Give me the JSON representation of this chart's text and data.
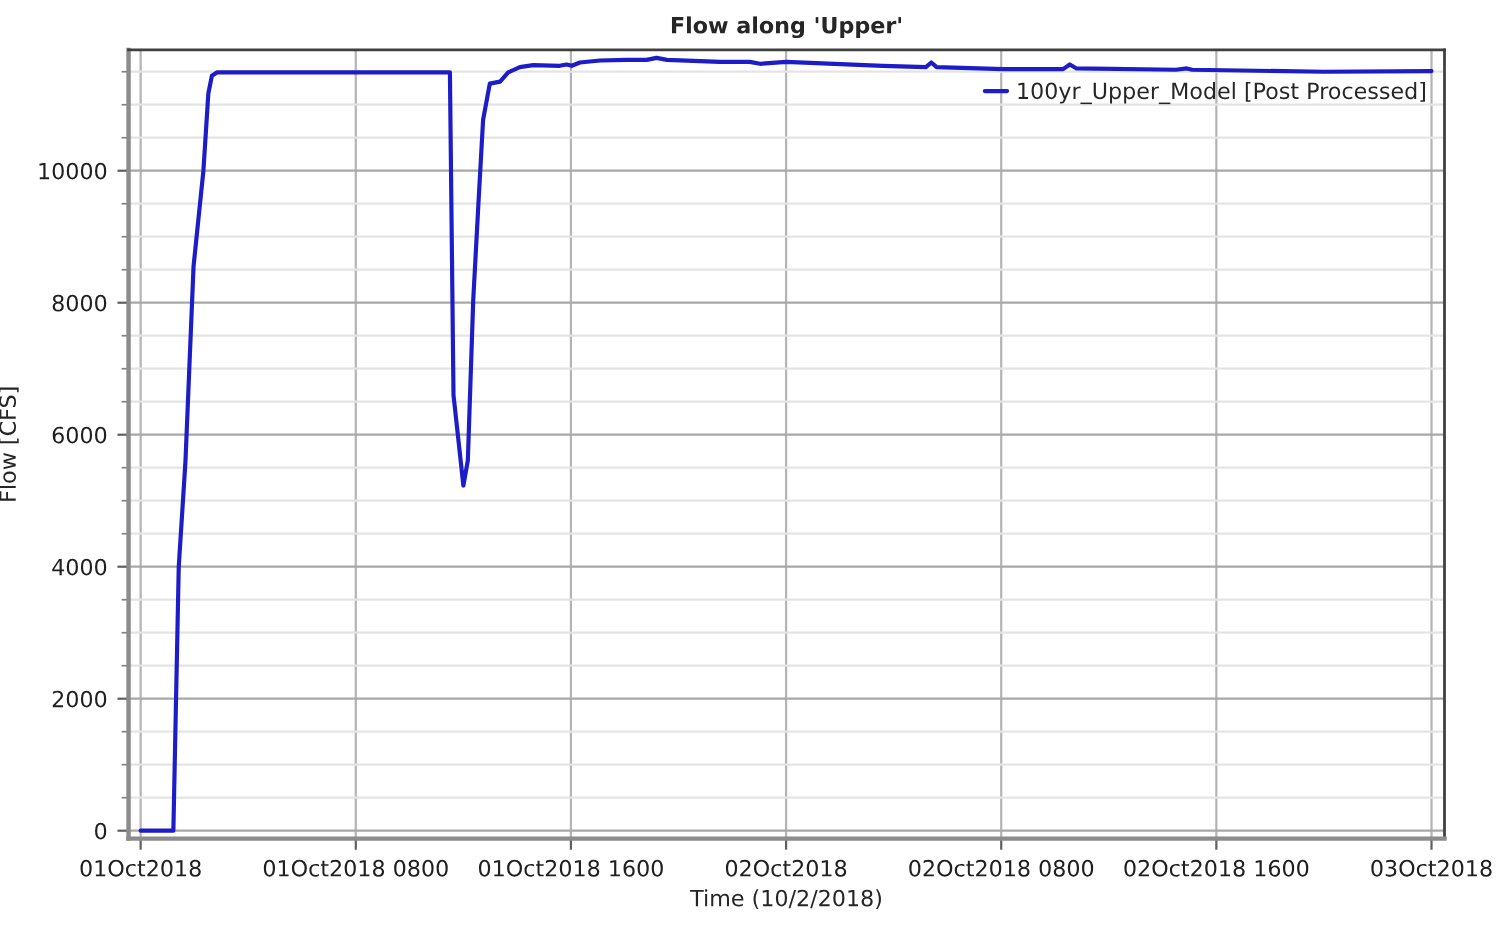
{
  "chart_data": {
    "type": "line",
    "title": "Flow along 'Upper'",
    "xlabel": "Time (10/2/2018)",
    "ylabel": "Flow [CFS]",
    "series": [
      {
        "name": "100yr_Upper_Model [Post Processed]",
        "color": "#1c1cc8",
        "x": [
          "2018-10-01T00:00",
          "2018-10-01T01:13",
          "2018-10-01T01:25",
          "2018-10-01T01:40",
          "2018-10-01T01:58",
          "2018-10-01T02:20",
          "2018-10-01T02:31",
          "2018-10-01T02:39",
          "2018-10-01T02:50",
          "2018-10-01T11:30",
          "2018-10-01T11:38",
          "2018-10-01T12:00",
          "2018-10-01T12:10",
          "2018-10-01T12:22",
          "2018-10-01T12:34",
          "2018-10-01T12:44",
          "2018-10-01T12:59",
          "2018-10-01T13:22",
          "2018-10-01T13:40",
          "2018-10-01T14:06",
          "2018-10-01T14:36",
          "2018-10-01T15:35",
          "2018-10-01T15:50",
          "2018-10-01T16:02",
          "2018-10-01T16:20",
          "2018-10-01T17:05",
          "2018-10-01T18:04",
          "2018-10-01T18:49",
          "2018-10-01T19:11",
          "2018-10-01T19:34",
          "2018-10-01T21:32",
          "2018-10-01T22:39",
          "2018-10-01T23:02",
          "2018-10-02T00:00",
          "2018-10-02T03:36",
          "2018-10-02T05:12",
          "2018-10-02T05:24",
          "2018-10-02T05:36",
          "2018-10-02T08:04",
          "2018-10-02T10:18",
          "2018-10-02T10:33",
          "2018-10-02T10:48",
          "2018-10-02T14:30",
          "2018-10-02T14:54",
          "2018-10-02T15:06",
          "2018-10-02T19:58",
          "2018-10-03T00:00"
        ],
        "values": [
          0,
          0,
          4000,
          5600,
          8550,
          10000,
          11170,
          11440,
          11490,
          11490,
          6600,
          5230,
          5610,
          8040,
          9550,
          10770,
          11320,
          11350,
          11490,
          11570,
          11600,
          11590,
          11610,
          11590,
          11640,
          11670,
          11680,
          11680,
          11710,
          11680,
          11650,
          11650,
          11620,
          11650,
          11590,
          11570,
          11640,
          11570,
          11540,
          11540,
          11610,
          11550,
          11530,
          11550,
          11530,
          11500,
          11510
        ]
      }
    ],
    "xlim": [
      "2018-09-30T23:33",
      "2018-10-03T00:29"
    ],
    "xticks": [
      {
        "value": "2018-10-01T00:00",
        "label": "01Oct2018"
      },
      {
        "value": "2018-10-01T08:00",
        "label": "01Oct2018 0800"
      },
      {
        "value": "2018-10-01T16:00",
        "label": "01Oct2018 1600"
      },
      {
        "value": "2018-10-02T00:00",
        "label": "02Oct2018"
      },
      {
        "value": "2018-10-02T08:00",
        "label": "02Oct2018 0800"
      },
      {
        "value": "2018-10-02T16:00",
        "label": "02Oct2018 1600"
      },
      {
        "value": "2018-10-03T00:00",
        "label": "03Oct2018"
      }
    ],
    "ylim": [
      -120,
      11830
    ],
    "yticks": [
      0,
      2000,
      4000,
      6000,
      8000,
      10000
    ],
    "grid": true,
    "legend": "top right",
    "marker": "none",
    "line_style": "solid"
  }
}
